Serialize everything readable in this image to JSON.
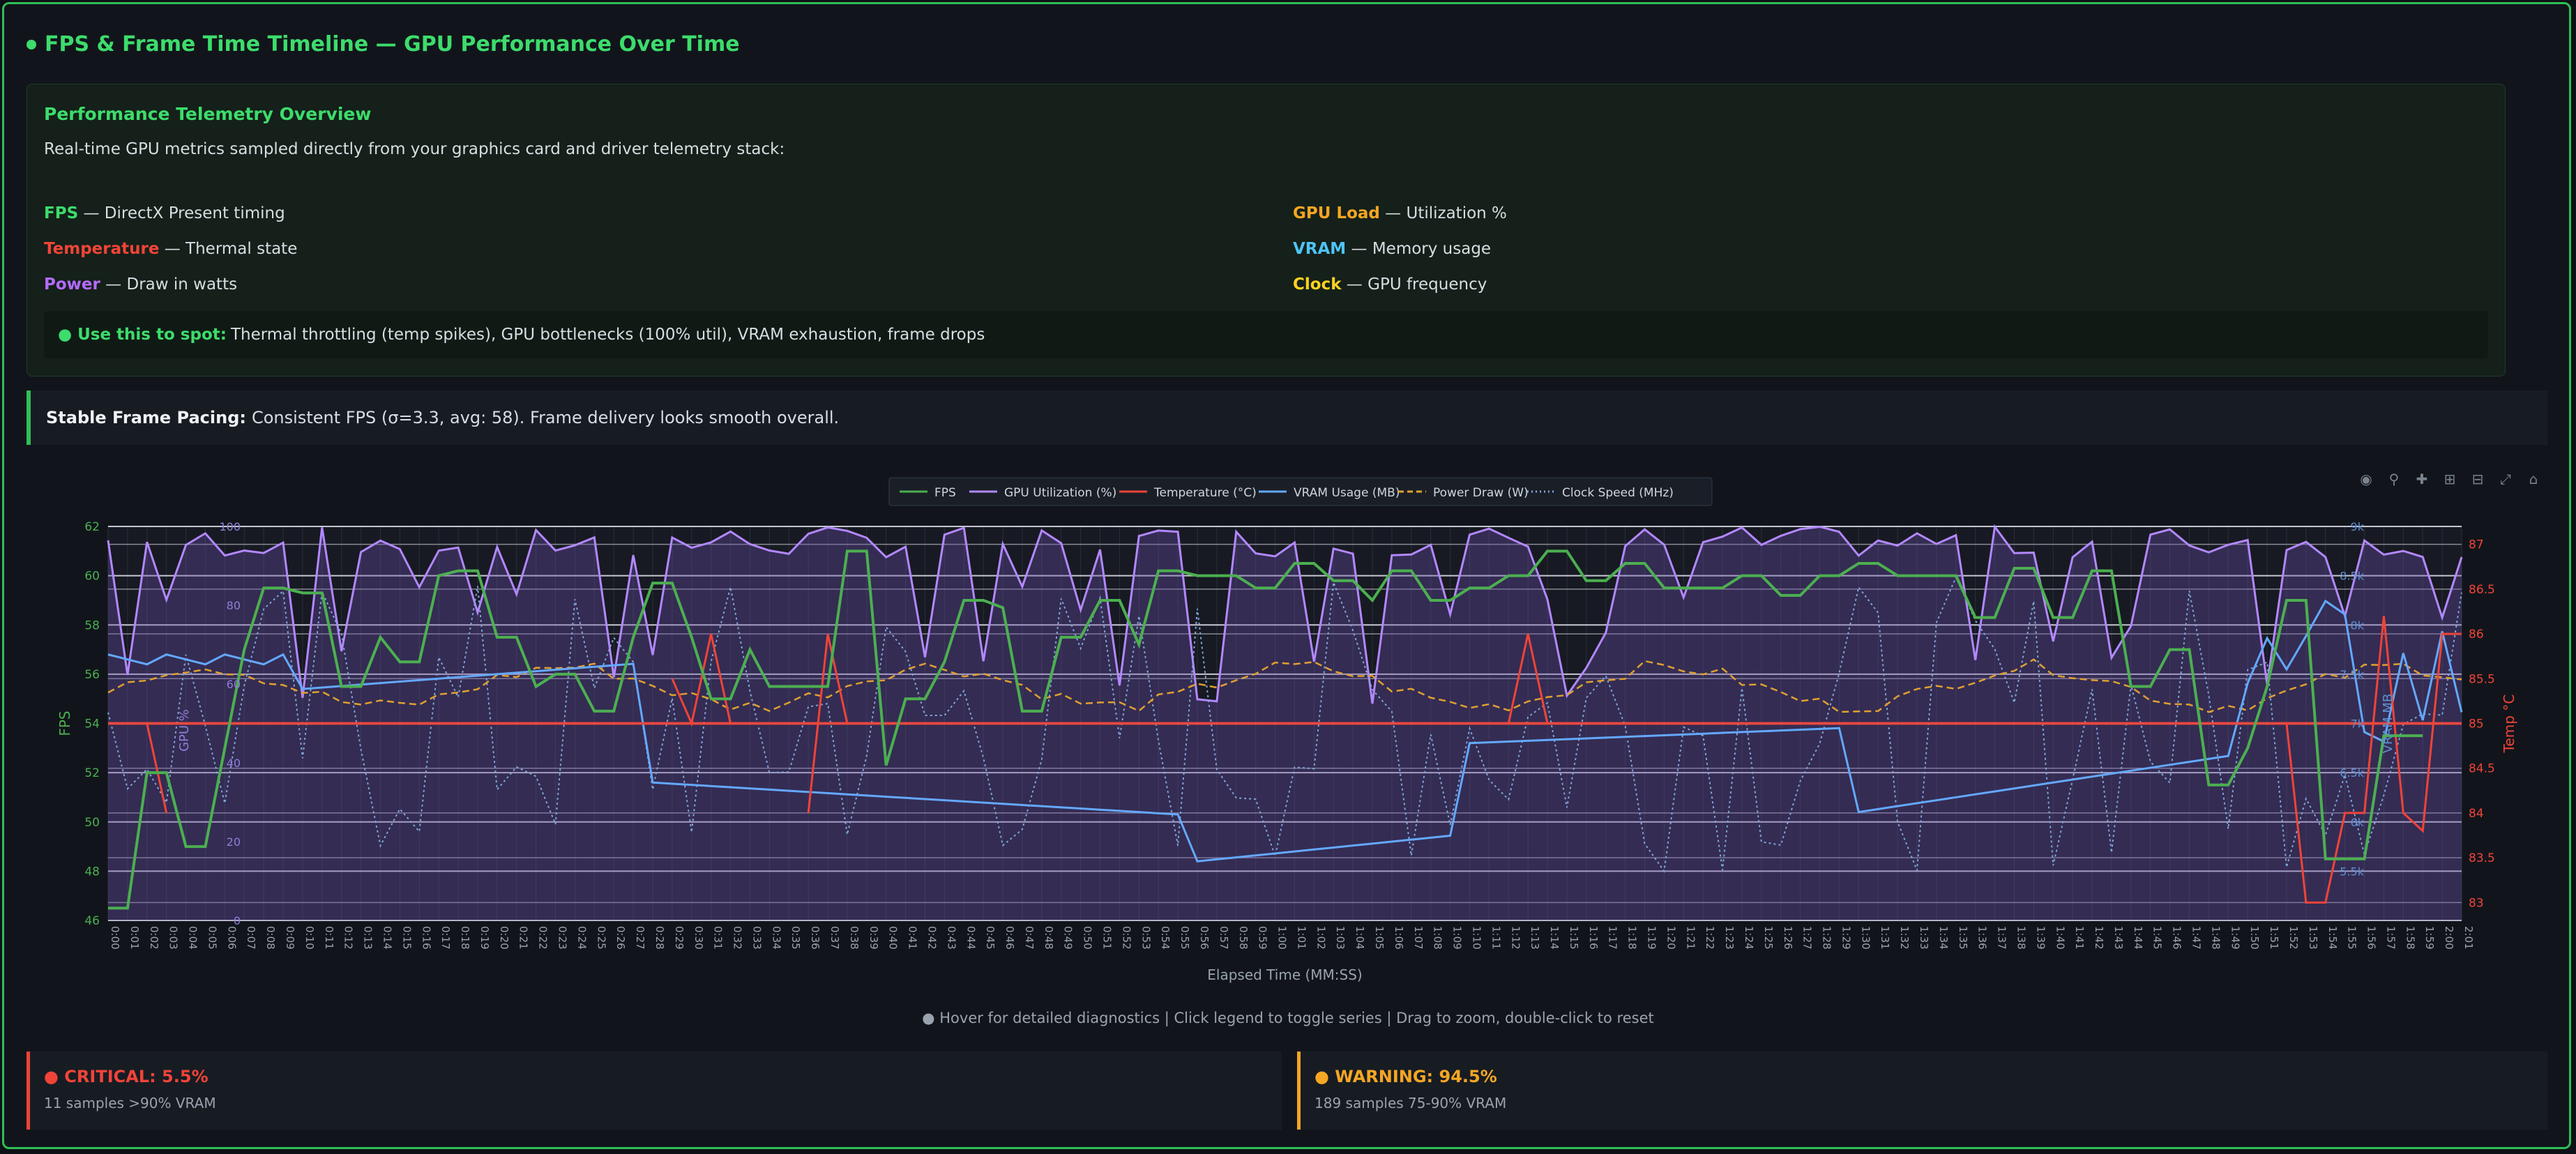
{
  "page": {
    "title": "FPS & Frame Time Timeline — GPU Performance Over Time"
  },
  "overview": {
    "title": "Performance Telemetry Overview",
    "description": "Real-time GPU metrics sampled directly from your graphics card and driver telemetry stack:",
    "metrics": [
      {
        "name": "FPS",
        "desc": " — DirectX Present timing",
        "color": "#3ddc6c"
      },
      {
        "name": "GPU Load",
        "desc": " — Utilization %",
        "color": "#f5a623"
      },
      {
        "name": "Temperature",
        "desc": " — Thermal state",
        "color": "#f04438"
      },
      {
        "name": "VRAM",
        "desc": " — Memory usage",
        "color": "#4fc3f7"
      },
      {
        "name": "Power",
        "desc": " — Draw in watts",
        "color": "#b36bff"
      },
      {
        "name": "Clock",
        "desc": " — GPU frequency",
        "color": "#ffd21f"
      }
    ],
    "spot_label": "● Use this to spot:",
    "spot_text": "Thermal throttling (temp spikes), GPU bottlenecks (100% util), VRAM exhaustion, frame drops"
  },
  "pacing": {
    "label": "Stable Frame Pacing:",
    "text": "Consistent FPS (σ=3.3, avg: 58). Frame delivery looks smooth overall."
  },
  "toolbar": {
    "icons": [
      "camera-icon",
      "zoom-icon",
      "pan-icon",
      "zoom-in-icon",
      "zoom-out-icon",
      "autoscale-icon",
      "home-icon"
    ]
  },
  "hint": "● Hover for detailed diagnostics | Click legend to toggle series | Drag to zoom, double-click to reset",
  "alerts": [
    {
      "title": "● CRITICAL: 5.5%",
      "sub": "11 samples >90% VRAM",
      "color": "#f04438"
    },
    {
      "title": "● WARNING: 94.5%",
      "sub": "189 samples 75-90% VRAM",
      "color": "#f5a623"
    }
  ],
  "chart_data": {
    "type": "line",
    "xlabel": "Elapsed Time (MM:SS)",
    "ylabel_left": "FPS",
    "ylabel_right": "Temp °C",
    "ylabel_gpu": "GPU %",
    "ylabel_vram": "VRAM MB",
    "ylim_fps": [
      46,
      62
    ],
    "ylim_temp": [
      82.8,
      87.2
    ],
    "ylim_gpu": [
      0,
      100
    ],
    "ylim_vram": [
      5,
      9
    ],
    "yticks_fps": [
      "46",
      "48",
      "50",
      "52",
      "54",
      "56",
      "58",
      "60",
      "62"
    ],
    "yticks_temp": [
      "83",
      "83.5",
      "84",
      "84.5",
      "85",
      "85.5",
      "86",
      "86.5",
      "87"
    ],
    "yticks_gpu": [
      "0",
      "20",
      "40",
      "60",
      "80",
      "100"
    ],
    "yticks_vram": [
      "5.5k",
      "6k",
      "6.5k",
      "7k",
      "7.5k",
      "8k",
      "8.5k",
      "9k"
    ],
    "x_range_seconds": [
      0,
      121
    ],
    "tick_step_seconds": 1,
    "legend": [
      {
        "name": "FPS",
        "color": "#4caf50",
        "style": "solid"
      },
      {
        "name": "GPU Utilization (%)",
        "color": "#b388ff",
        "style": "solid"
      },
      {
        "name": "Temperature (°C)",
        "color": "#f04438",
        "style": "solid"
      },
      {
        "name": "VRAM Usage (MB)",
        "color": "#64a8ff",
        "style": "solid"
      },
      {
        "name": "Power Draw (W)",
        "color": "#e0a030",
        "style": "dashed"
      },
      {
        "name": "Clock Speed (MHz)",
        "color": "#7ea6d8",
        "style": "dotted"
      }
    ],
    "series": {
      "fps": [
        46.5,
        46.5,
        52,
        52,
        49,
        49,
        53,
        57,
        59.5,
        59.5,
        59.3,
        59.3,
        55.5,
        55.5,
        57.5,
        56.5,
        56.5,
        60,
        60.2,
        60.2,
        57.5,
        57.5,
        55.5,
        56,
        56,
        54.5,
        54.5,
        57.5,
        59.7,
        59.7,
        57.5,
        55,
        55,
        57,
        55.5,
        55.5,
        55.5,
        55.5,
        61,
        61,
        52.3,
        55,
        55,
        56.5,
        59,
        59,
        58.7,
        54.5,
        54.5,
        57.5,
        57.5,
        59,
        59,
        57.2,
        60.2,
        60.2,
        60,
        60,
        60,
        59.5,
        59.5,
        60.5,
        60.5,
        59.8,
        59.8,
        59,
        60.2,
        60.2,
        59,
        59,
        59.5,
        59.5,
        60,
        60,
        61,
        61,
        59.8,
        59.8,
        60.5,
        60.5,
        59.5,
        59.5,
        59.5,
        59.5,
        60,
        60,
        59.2,
        59.2,
        60,
        60,
        60.5,
        60.5,
        60,
        60,
        60,
        60,
        58.3,
        58.3,
        60.3,
        60.3,
        58.3,
        58.3,
        60.2,
        60.2,
        55.5,
        55.5,
        57,
        57,
        51.5,
        51.5,
        53,
        55.5,
        59,
        59,
        48.5,
        48.5,
        48.5,
        53.5,
        53.5,
        53.5
      ],
      "temp": [
        null,
        null,
        85,
        84,
        null,
        null,
        null,
        null,
        null,
        null,
        null,
        null,
        null,
        null,
        null,
        null,
        null,
        null,
        null,
        null,
        null,
        null,
        null,
        null,
        null,
        null,
        null,
        null,
        null,
        85.5,
        85,
        86,
        85,
        null,
        null,
        null,
        84,
        86,
        85,
        null,
        null,
        null,
        null,
        null,
        null,
        null,
        null,
        null,
        null,
        null,
        null,
        null,
        null,
        null,
        null,
        null,
        null,
        null,
        null,
        null,
        null,
        null,
        null,
        null,
        null,
        null,
        null,
        null,
        null,
        null,
        null,
        null,
        85,
        86,
        85,
        null,
        null,
        null,
        null,
        null,
        null,
        null,
        null,
        null,
        null,
        null,
        null,
        null,
        null,
        null,
        null,
        null,
        null,
        null,
        null,
        null,
        null,
        null,
        null,
        null,
        null,
        null,
        null,
        null,
        null,
        null,
        null,
        null,
        null,
        null,
        null,
        null,
        85,
        83,
        83,
        84,
        84,
        86.2,
        84,
        83.8,
        86,
        86
      ]
    }
  }
}
